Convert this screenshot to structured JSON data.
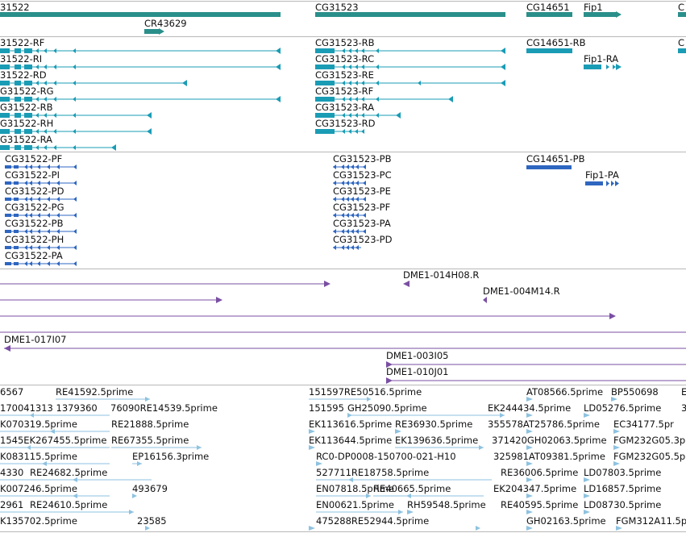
{
  "colors": {
    "gene": "#2a8f8a",
    "transcript": "#1a9cb5",
    "protein": "#2e66c0",
    "clone": "#7a4fa3",
    "est": "#8ec2e0",
    "divider": "#b8b8b8"
  },
  "tracks": {
    "genes": [
      "31522",
      "CG31523",
      "CG14651",
      "Fip1",
      "C",
      "CR43629"
    ],
    "transcripts": [
      "31522-RF",
      "31522-RI",
      "31522-RD",
      "G31522-RG",
      "G31522-RB",
      "G31522-RH",
      "G31522-RA",
      "CG31523-RB",
      "CG31523-RC",
      "CG31523-RE",
      "CG31523-RF",
      "CG31523-RA",
      "CG31523-RD",
      "CG14651-RB",
      "Fip1-RA",
      "C"
    ],
    "proteins": [
      "CG31522-PF",
      "CG31522-PI",
      "CG31522-PD",
      "CG31522-PG",
      "CG31522-PB",
      "CG31522-PH",
      "CG31522-PA",
      "CG31523-PB",
      "CG31523-PC",
      "CG31523-PE",
      "CG31523-PF",
      "CG31523-PA",
      "CG31523-PD",
      "CG14651-PB",
      "Fip1-PA"
    ],
    "clones": [
      "DME1-014H08.R",
      "DME1-004M14.R",
      "DME1-017I07",
      "DME1-003I05",
      "DME1-010J01"
    ],
    "ests": [
      [
        "6567",
        "RE41592.5prime",
        "151597RE50516.5prime",
        "AT08566.5prime",
        "BP550698",
        "E"
      ],
      [
        "170041313 1379360",
        "76090RE14539.5prime",
        "151595",
        "GH25090.5prime",
        "EK244434.5prime",
        "LD05276.5prime",
        "3"
      ],
      [
        "K070319.5prime",
        "RE21888.5prime",
        "EK113616.5prime",
        "RE36930.5prime",
        "355578AT25786.5prime",
        "EC34177.5pr"
      ],
      [
        "1545EK267455.5prime",
        "RE67355.5prime",
        "EK113644.5prime",
        "EK139636.5prime",
        "371420GH02063.5prime",
        "FGM232G05.3p"
      ],
      [
        "K083115.5prime",
        "EP16156.3prime",
        "RC0-DP0008-150700-021-H10",
        "325981AT09381.5prime",
        "FGM232G05.5p"
      ],
      [
        "4330",
        "RE24682.5prime",
        "527711RE18758.5prime",
        "RE36006.5prime",
        "LD07803.5prime"
      ],
      [
        "K007246.5prime",
        "493679",
        "EN07818.5prime",
        "RE40665.5prime",
        "EK204347.5prime",
        "LD16857.5prime"
      ],
      [
        "2961",
        "RE24610.5prime",
        "EN00621.5prime",
        "RH59548.5prime",
        "RE40595.5prime",
        "LD08730.5prime"
      ],
      [
        "K135702.5prime",
        "23585",
        "475288RE52944.5prime",
        "GH02163.5prime",
        "FGM312A11.5p"
      ]
    ]
  }
}
